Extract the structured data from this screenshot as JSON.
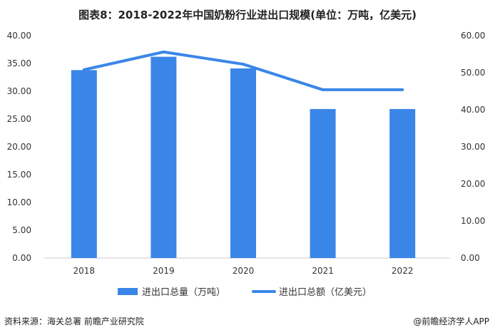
{
  "title": "图表8：2018-2022年中国奶粉行业进出口规模(单位：万吨，亿美元)",
  "source": "资料来源：海关总署 前瞻产业研究院",
  "brand": "@前瞻经济学人APP",
  "watermark": "前瞻产业研究院",
  "colors": {
    "bar": "#3A86E8",
    "line": "#3A86E8"
  },
  "chart_data": {
    "type": "bar+line",
    "categories": [
      "2018",
      "2019",
      "2020",
      "2021",
      "2022"
    ],
    "y_left": {
      "range": [
        0,
        40
      ],
      "ticks": [
        "0.00",
        "5.00",
        "10.00",
        "15.00",
        "20.00",
        "25.00",
        "30.00",
        "35.00",
        "40.00"
      ]
    },
    "y_right": {
      "range": [
        0,
        60
      ],
      "ticks": [
        "0.00",
        "10.00",
        "20.00",
        "30.00",
        "40.00",
        "50.00",
        "60.00"
      ]
    },
    "series": [
      {
        "name": "进出口总量（万吨）",
        "type": "bar",
        "axis": "left",
        "values": [
          33.8,
          36.2,
          34.1,
          26.8,
          26.8
        ]
      },
      {
        "name": "进出口总额（亿美元）",
        "type": "line",
        "axis": "right",
        "values": [
          50.8,
          55.6,
          52.3,
          45.4,
          45.4
        ]
      }
    ],
    "grid": false,
    "legend": "bottom"
  }
}
